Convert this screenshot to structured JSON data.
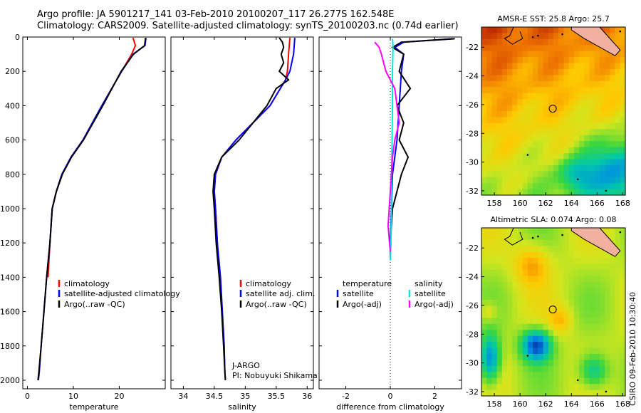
{
  "title_line1": "Argo profile: JA 5901217_141 03-Feb-2010 20100207_117 26.277S 162.548E",
  "title_line2": "Climatology: CARS2009. Satellite-adjusted climatology: synTS_20100203.nc (0.74d earlier)",
  "credit": "CSIRO 09-Feb-2010 10:30:40",
  "colors": {
    "climatology": "#ff0000",
    "satellite": "#0000ff",
    "argo": "#000000",
    "cyan": "#00e5e5",
    "magenta": "#ff00ff"
  },
  "chart_data": [
    {
      "type": "line",
      "xlabel": "temperature",
      "ylabel": "",
      "xlim": [
        -1,
        30
      ],
      "ylim": [
        2050,
        0
      ],
      "xticks": [
        0,
        10,
        20
      ],
      "yticks": [
        0,
        200,
        400,
        600,
        800,
        1000,
        1200,
        1400,
        1600,
        1800,
        2000
      ],
      "legend_position": "lower-center",
      "series": [
        {
          "name": "climatology",
          "color": "#ff0000",
          "x": [
            23,
            23.5,
            22.7,
            20.5,
            16.2,
            12.1,
            9.5,
            7.6,
            6.3,
            5.4,
            4.9,
            4.5
          ],
          "y": [
            5,
            50,
            100,
            200,
            400,
            600,
            700,
            800,
            900,
            1000,
            1200,
            1400
          ]
        },
        {
          "name": "satellite-adjusted climatology",
          "color": "#0000ff",
          "x": [
            25.8,
            25.6,
            23.0,
            20.5,
            16.2,
            12.1,
            9.5,
            7.5,
            6.3,
            5.4,
            4.9,
            4.2,
            3.6,
            3.0,
            2.6,
            2.4
          ],
          "y": [
            5,
            50,
            100,
            200,
            400,
            600,
            700,
            800,
            900,
            1000,
            1200,
            1400,
            1600,
            1800,
            1950,
            2000
          ]
        },
        {
          "name": "Argo(..raw -QC)",
          "color": "#000000",
          "x": [
            25.7,
            25.5,
            23.1,
            20.4,
            16.4,
            12.2,
            9.6,
            7.6,
            6.3,
            5.4,
            4.9,
            4.2,
            3.6,
            3.0,
            2.5,
            2.3
          ],
          "y": [
            5,
            50,
            100,
            200,
            400,
            600,
            700,
            800,
            900,
            1000,
            1200,
            1400,
            1600,
            1800,
            1950,
            2000
          ]
        }
      ]
    },
    {
      "type": "line",
      "xlabel": "salinity",
      "ylabel": "",
      "xlim": [
        33.8,
        36.1
      ],
      "ylim": [
        2050,
        0
      ],
      "xticks": [
        34,
        34.5,
        35,
        35.5,
        36
      ],
      "legend_position": "lower-center",
      "annotations": [
        "J-ARGO",
        "PI: Nobuyuki Shikama"
      ],
      "series": [
        {
          "name": "climatology",
          "color": "#ff0000",
          "x": [
            35.72,
            35.7,
            35.68,
            35.65,
            35.4,
            34.85,
            34.62,
            34.52,
            34.5,
            34.52,
            34.55,
            34.58
          ],
          "y": [
            5,
            100,
            200,
            250,
            400,
            600,
            700,
            800,
            900,
            1000,
            1200,
            1400
          ]
        },
        {
          "name": "satellite adj. clim.",
          "color": "#0000ff",
          "x": [
            35.8,
            35.78,
            35.72,
            35.65,
            35.4,
            34.85,
            34.62,
            34.52,
            34.5,
            34.52,
            34.55,
            34.6,
            34.63,
            34.66,
            34.67,
            34.68
          ],
          "y": [
            5,
            100,
            200,
            250,
            400,
            600,
            700,
            800,
            900,
            1000,
            1200,
            1400,
            1600,
            1800,
            1950,
            2000
          ]
        },
        {
          "name": "Argo(..raw -QC)",
          "color": "#000000",
          "x": [
            35.55,
            35.6,
            35.62,
            35.58,
            35.62,
            35.55,
            35.7,
            35.5,
            35.35,
            34.9,
            34.62,
            34.5,
            34.48,
            34.5,
            34.53,
            34.58,
            34.62,
            34.65,
            34.67,
            34.68
          ],
          "y": [
            5,
            30,
            60,
            100,
            150,
            200,
            250,
            300,
            400,
            600,
            700,
            800,
            900,
            1000,
            1200,
            1400,
            1600,
            1800,
            1950,
            2000
          ]
        }
      ]
    },
    {
      "type": "line",
      "xlabel": "difference from climatology",
      "ylabel": "",
      "xlim": [
        -3.2,
        3.2
      ],
      "ylim": [
        2050,
        0
      ],
      "xticks": [
        -2,
        0,
        2
      ],
      "legend_position": "lower-center",
      "legend_groups": [
        "temperature",
        "salinity"
      ],
      "series": [
        {
          "name": "satellite",
          "group": "temperature",
          "color": "#0000ff",
          "x": [
            2.8,
            0.6,
            0.2,
            0.6,
            0.5,
            0.4,
            0.3,
            0.1,
            0.05,
            0.0,
            0.0,
            0.0
          ],
          "y": [
            10,
            30,
            60,
            100,
            200,
            400,
            600,
            800,
            1000,
            1200,
            1250,
            1300
          ]
        },
        {
          "name": "Argo(-adj)",
          "group": "temperature",
          "color": "#000000",
          "x": [
            2.9,
            0.5,
            0.1,
            0.6,
            0.4,
            0.9,
            0.3,
            0.6,
            0.4,
            0.8,
            0.5,
            0.1,
            0.0,
            0.0
          ],
          "y": [
            10,
            30,
            60,
            100,
            200,
            300,
            400,
            500,
            600,
            700,
            800,
            1000,
            1200,
            1300
          ]
        },
        {
          "name": "satellite",
          "group": "salinity",
          "color": "#00e5e5",
          "x": [
            0.1,
            0.12,
            0.1,
            0.1,
            0.08,
            0.06,
            0.05,
            0.03,
            0.0
          ],
          "y": [
            10,
            60,
            200,
            400,
            600,
            800,
            1000,
            1200,
            1300
          ]
        },
        {
          "name": "Argo(-adj)",
          "group": "salinity",
          "color": "#ff00ff",
          "x": [
            -0.7,
            -0.5,
            -0.4,
            -0.2,
            0.2,
            0.3,
            0.4,
            0.2,
            0.1,
            0.0,
            -0.1,
            0.0
          ],
          "y": [
            30,
            60,
            100,
            200,
            300,
            400,
            500,
            600,
            700,
            900,
            1100,
            1250
          ]
        }
      ]
    },
    {
      "type": "heatmap",
      "title": "AMSR-E SST: 25.8 Argo: 25.7",
      "xlim": [
        157,
        168.2
      ],
      "ylim": [
        -32.3,
        -20.6
      ],
      "xticks": [
        158,
        160,
        162,
        164,
        166,
        168
      ],
      "yticks": [
        -22,
        -24,
        -26,
        -28,
        -30,
        -32
      ],
      "marker": {
        "x": 162.55,
        "y": -26.28
      }
    },
    {
      "type": "heatmap",
      "title": "Altimetric SLA: 0.074 Argo: 0.08",
      "xlim": [
        157,
        168.2
      ],
      "ylim": [
        -32.3,
        -20.6
      ],
      "xticks": [
        158,
        160,
        162,
        164,
        166,
        168
      ],
      "yticks": [
        -22,
        -24,
        -26,
        -28,
        -30,
        -32
      ],
      "marker": {
        "x": 162.55,
        "y": -26.28
      }
    }
  ]
}
